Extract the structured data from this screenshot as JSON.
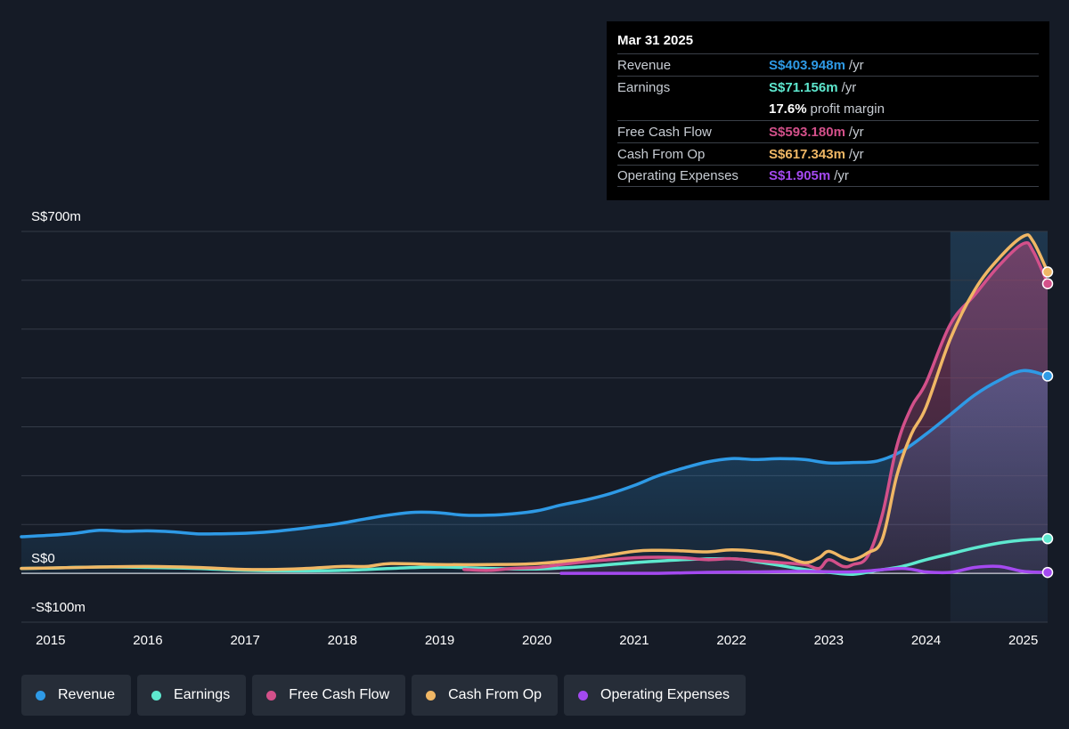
{
  "colors": {
    "revenue": "#2e9ae6",
    "earnings": "#5ee8cf",
    "fcf": "#d3508a",
    "cfo": "#f0b765",
    "opex": "#a449f0"
  },
  "tooltip": {
    "date": "Mar 31 2025",
    "rows": [
      {
        "name": "Revenue",
        "value": "S$403.948m",
        "unit": "/yr"
      },
      {
        "name": "Earnings",
        "value": "S$71.156m",
        "unit": "/yr"
      },
      {
        "name": "",
        "value": "17.6%",
        "unit": "profit margin"
      },
      {
        "name": "Free Cash Flow",
        "value": "S$593.180m",
        "unit": "/yr"
      },
      {
        "name": "Cash From Op",
        "value": "S$617.343m",
        "unit": "/yr"
      },
      {
        "name": "Operating Expenses",
        "value": "S$1.905m",
        "unit": "/yr"
      }
    ]
  },
  "legend": [
    {
      "label": "Revenue",
      "color": "#2e9ae6"
    },
    {
      "label": "Earnings",
      "color": "#5ee8cf"
    },
    {
      "label": "Free Cash Flow",
      "color": "#d3508a"
    },
    {
      "label": "Cash From Op",
      "color": "#f0b765"
    },
    {
      "label": "Operating Expenses",
      "color": "#a449f0"
    }
  ],
  "chart_data": {
    "type": "area",
    "ylabels": [
      "S$700m",
      "S$0",
      "-S$100m"
    ],
    "ylim": [
      -100,
      700
    ],
    "xlim": [
      2014.7,
      2025.25
    ],
    "xticks": [
      "2015",
      "2016",
      "2017",
      "2018",
      "2019",
      "2020",
      "2021",
      "2022",
      "2023",
      "2024",
      "2025"
    ],
    "grid": true,
    "highlight_start": 2024.25,
    "series": [
      {
        "name": "Revenue",
        "color": "#2e9ae6",
        "x": [
          2014.7,
          2015.0,
          2015.25,
          2015.5,
          2015.75,
          2016.0,
          2016.25,
          2016.5,
          2016.75,
          2017.0,
          2017.25,
          2017.5,
          2017.75,
          2018.0,
          2018.25,
          2018.5,
          2018.75,
          2019.0,
          2019.25,
          2019.5,
          2019.75,
          2020.0,
          2020.25,
          2020.5,
          2020.75,
          2021.0,
          2021.25,
          2021.5,
          2021.75,
          2022.0,
          2022.25,
          2022.5,
          2022.75,
          2023.0,
          2023.25,
          2023.5,
          2023.75,
          2024.0,
          2024.25,
          2024.5,
          2024.75,
          2025.0,
          2025.25
        ],
        "values": [
          75,
          78,
          82,
          88,
          86,
          87,
          85,
          81,
          81,
          82,
          85,
          90,
          96,
          103,
          112,
          120,
          125,
          124,
          119,
          119,
          122,
          128,
          140,
          150,
          163,
          180,
          200,
          215,
          228,
          235,
          233,
          235,
          233,
          226,
          227,
          230,
          250,
          285,
          325,
          365,
          395,
          415,
          404
        ]
      },
      {
        "name": "Earnings",
        "color": "#5ee8cf",
        "x": [
          2014.7,
          2015.0,
          2015.5,
          2016.0,
          2016.5,
          2017.0,
          2017.5,
          2018.0,
          2018.5,
          2019.0,
          2019.5,
          2020.0,
          2020.5,
          2021.0,
          2021.5,
          2022.0,
          2022.25,
          2022.5,
          2022.75,
          2023.0,
          2023.25,
          2023.5,
          2023.75,
          2024.0,
          2024.25,
          2024.5,
          2024.75,
          2025.0,
          2025.25
        ],
        "values": [
          10,
          11,
          13,
          12,
          10,
          6,
          5,
          6,
          10,
          13,
          10,
          9,
          14,
          22,
          28,
          30,
          24,
          16,
          8,
          2,
          -2,
          6,
          14,
          28,
          40,
          52,
          62,
          68,
          71
        ]
      },
      {
        "name": "Free Cash Flow",
        "color": "#d3508a",
        "x": [
          2019.25,
          2019.5,
          2019.75,
          2020.0,
          2020.25,
          2020.5,
          2020.75,
          2021.0,
          2021.25,
          2021.5,
          2021.75,
          2022.0,
          2022.25,
          2022.5,
          2022.75,
          2022.9,
          2023.0,
          2023.15,
          2023.25,
          2023.4,
          2023.55,
          2023.7,
          2023.85,
          2024.0,
          2024.25,
          2024.5,
          2024.75,
          2025.0,
          2025.1,
          2025.25
        ],
        "values": [
          8,
          6,
          10,
          12,
          18,
          24,
          28,
          32,
          33,
          32,
          28,
          30,
          26,
          22,
          18,
          10,
          28,
          14,
          18,
          35,
          120,
          260,
          340,
          390,
          510,
          570,
          630,
          675,
          660,
          593
        ]
      },
      {
        "name": "Cash From Op",
        "color": "#f0b765",
        "x": [
          2014.7,
          2015.0,
          2015.5,
          2016.0,
          2016.5,
          2017.0,
          2017.5,
          2018.0,
          2018.25,
          2018.5,
          2019.0,
          2019.5,
          2020.0,
          2020.5,
          2021.0,
          2021.25,
          2021.5,
          2021.75,
          2022.0,
          2022.25,
          2022.5,
          2022.75,
          2022.9,
          2023.0,
          2023.15,
          2023.25,
          2023.4,
          2023.55,
          2023.7,
          2023.85,
          2024.0,
          2024.25,
          2024.5,
          2024.75,
          2025.0,
          2025.1,
          2025.25
        ],
        "values": [
          10,
          11,
          13,
          14,
          12,
          8,
          9,
          14,
          14,
          20,
          18,
          18,
          20,
          30,
          45,
          47,
          46,
          44,
          48,
          45,
          38,
          22,
          32,
          45,
          32,
          28,
          42,
          70,
          200,
          285,
          340,
          480,
          580,
          645,
          690,
          680,
          617
        ]
      },
      {
        "name": "Operating Expenses",
        "color": "#a449f0",
        "x": [
          2020.25,
          2020.75,
          2021.25,
          2021.75,
          2022.25,
          2022.75,
          2023.25,
          2023.75,
          2024.0,
          2024.25,
          2024.5,
          2024.75,
          2025.0,
          2025.25
        ],
        "values": [
          0,
          0,
          0,
          2,
          3,
          4,
          3,
          10,
          3,
          2,
          12,
          14,
          4,
          1.9
        ]
      }
    ]
  }
}
